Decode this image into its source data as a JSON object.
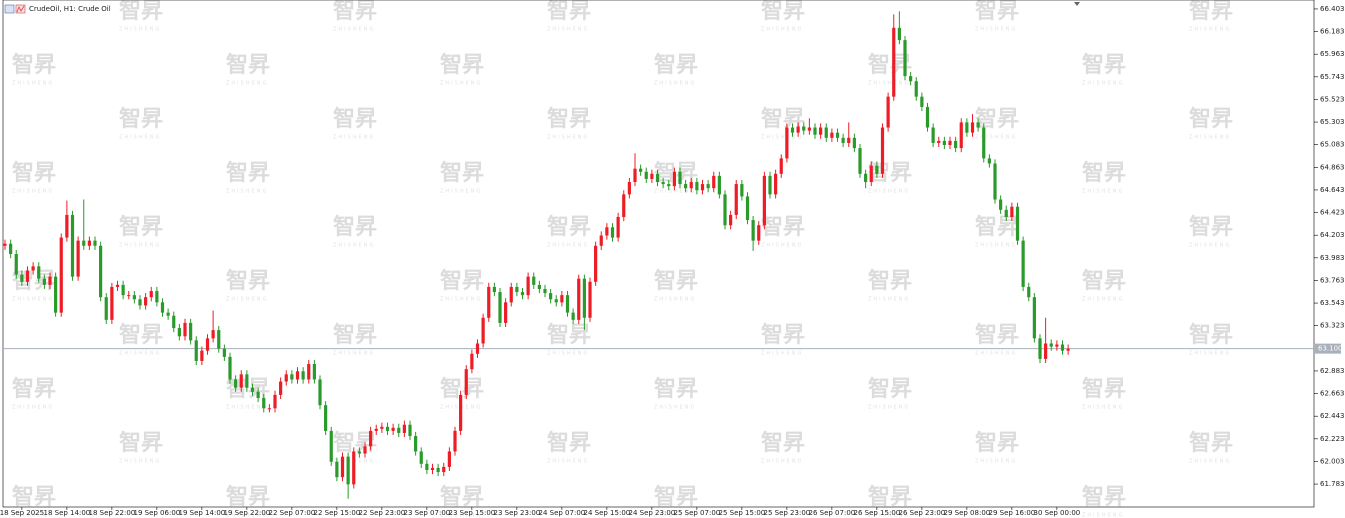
{
  "chart_data": {
    "type": "candlestick",
    "title": "CrudeOil, H1:  Crude Oil",
    "watermark": "智昇",
    "watermark_sub": "ZHISHENG",
    "up_color": "#ee1c25",
    "down_color": "#2a9a2a",
    "last_price": {
      "value": 63.1,
      "label": "63.100"
    },
    "last_price_color": "#a8b0bc",
    "ylim": [
      61.56,
      66.49
    ],
    "yticks": [
      66.403,
      66.183,
      65.963,
      65.743,
      65.523,
      65.303,
      65.083,
      64.863,
      64.643,
      64.423,
      64.203,
      63.983,
      63.763,
      63.543,
      63.323,
      62.883,
      62.663,
      62.443,
      62.223,
      62.003,
      61.783
    ],
    "categories": [
      null,
      null,
      null,
      "18 Sep 2025",
      null,
      null,
      null,
      null,
      null,
      null,
      null,
      "18 Sep 14:00",
      null,
      null,
      null,
      null,
      null,
      null,
      null,
      "18 Sep 22:00",
      null,
      null,
      null,
      null,
      null,
      null,
      null,
      "19 Sep 06:00",
      null,
      null,
      null,
      null,
      null,
      null,
      null,
      "19 Sep 14:00",
      null,
      null,
      null,
      null,
      null,
      null,
      null,
      "19 Sep 22:00",
      null,
      null,
      null,
      null,
      null,
      null,
      null,
      "22 Sep 07:00",
      null,
      null,
      null,
      null,
      null,
      null,
      null,
      "22 Sep 15:00",
      null,
      null,
      null,
      null,
      null,
      null,
      null,
      "22 Sep 23:00",
      null,
      null,
      null,
      null,
      null,
      null,
      null,
      "23 Sep 07:00",
      null,
      null,
      null,
      null,
      null,
      null,
      null,
      "23 Sep 15:00",
      null,
      null,
      null,
      null,
      null,
      null,
      null,
      "23 Sep 23:00",
      null,
      null,
      null,
      null,
      null,
      null,
      null,
      "24 Sep 07:00",
      null,
      null,
      null,
      null,
      null,
      null,
      null,
      "24 Sep 15:00",
      null,
      null,
      null,
      null,
      null,
      null,
      null,
      "24 Sep 23:00",
      null,
      null,
      null,
      null,
      null,
      null,
      null,
      "25 Sep 07:00",
      null,
      null,
      null,
      null,
      null,
      null,
      null,
      "25 Sep 15:00",
      null,
      null,
      null,
      null,
      null,
      null,
      null,
      "25 Sep 23:00",
      null,
      null,
      null,
      null,
      null,
      null,
      null,
      "26 Sep 07:00",
      null,
      null,
      null,
      null,
      null,
      null,
      null,
      "26 Sep 15:00",
      null,
      null,
      null,
      null,
      null,
      null,
      null,
      "26 Sep 23:00",
      null,
      null,
      null,
      null,
      null,
      null,
      null,
      "29 Sep 08:00",
      null,
      null,
      null,
      null,
      null,
      null,
      null,
      "29 Sep 16:00",
      null,
      null,
      null,
      null,
      null,
      null,
      null,
      "30 Sep 00:00",
      null,
      null
    ],
    "open": [
      64.1,
      64.12,
      64.02,
      63.82,
      63.75,
      63.86,
      63.9,
      63.78,
      63.72,
      63.8,
      63.45,
      64.18,
      64.4,
      63.8,
      64.15,
      64.1,
      64.15,
      64.1,
      63.6,
      63.38,
      63.7,
      63.72,
      63.62,
      63.62,
      63.58,
      63.52,
      63.6,
      63.66,
      63.55,
      63.45,
      63.42,
      63.3,
      63.22,
      63.35,
      63.18,
      62.98,
      63.08,
      63.2,
      63.28,
      63.1,
      63.02,
      62.8,
      62.72,
      62.85,
      62.72,
      62.68,
      62.62,
      62.52,
      62.52,
      62.65,
      62.78,
      62.85,
      62.8,
      62.88,
      62.8,
      62.95,
      62.8,
      62.55,
      62.3,
      62.0,
      61.85,
      62.05,
      61.78,
      62.1,
      62.08,
      62.15,
      62.3,
      62.32,
      62.34,
      62.3,
      62.33,
      62.28,
      62.36,
      62.25,
      62.1,
      61.98,
      61.92,
      61.94,
      61.9,
      61.95,
      62.1,
      62.3,
      62.65,
      62.9,
      63.05,
      63.15,
      63.4,
      63.7,
      63.65,
      63.35,
      63.55,
      63.7,
      63.65,
      63.62,
      63.8,
      63.72,
      63.68,
      63.64,
      63.58,
      63.55,
      63.62,
      63.45,
      63.38,
      63.78,
      63.4,
      63.75,
      64.1,
      64.2,
      64.28,
      64.18,
      64.38,
      64.6,
      64.72,
      64.85,
      64.82,
      64.75,
      64.8,
      64.72,
      64.7,
      64.68,
      64.82,
      64.7,
      64.66,
      64.72,
      64.64,
      64.7,
      64.66,
      64.78,
      64.6,
      64.3,
      64.4,
      64.7,
      64.58,
      64.35,
      64.15,
      64.3,
      64.78,
      64.6,
      64.8,
      64.95,
      65.25,
      65.2,
      65.26,
      65.22,
      65.25,
      65.18,
      65.25,
      65.15,
      65.2,
      65.15,
      65.1,
      65.15,
      65.05,
      64.8,
      64.72,
      64.88,
      64.8,
      65.25,
      65.55,
      66.22,
      66.1,
      65.75,
      65.7,
      65.55,
      65.45,
      65.25,
      65.1,
      65.12,
      65.08,
      65.12,
      65.05,
      65.3,
      65.2,
      65.3,
      65.25,
      64.95,
      64.9,
      64.55,
      64.45,
      64.38,
      64.48,
      64.15,
      63.7,
      63.6,
      63.2,
      63.0,
      63.15,
      63.12,
      63.14,
      63.08
    ],
    "high": [
      64.16,
      64.16,
      64.06,
      63.86,
      63.9,
      63.94,
      63.94,
      63.82,
      63.84,
      63.84,
      64.22,
      64.54,
      64.44,
      64.19,
      64.55,
      64.19,
      64.19,
      64.14,
      63.64,
      63.74,
      63.76,
      63.76,
      63.66,
      63.66,
      63.62,
      63.64,
      63.7,
      63.7,
      63.59,
      63.49,
      63.46,
      63.34,
      63.39,
      63.39,
      63.22,
      63.12,
      63.24,
      63.47,
      63.32,
      63.14,
      63.06,
      62.84,
      62.89,
      62.89,
      62.76,
      62.72,
      62.66,
      62.56,
      62.69,
      62.82,
      62.89,
      62.89,
      62.92,
      62.92,
      62.99,
      62.99,
      62.84,
      62.59,
      62.34,
      62.04,
      62.09,
      62.09,
      62.14,
      62.14,
      62.19,
      62.34,
      62.36,
      62.38,
      62.38,
      62.37,
      62.37,
      62.4,
      62.4,
      62.29,
      62.14,
      62.02,
      61.98,
      61.98,
      61.99,
      62.14,
      62.34,
      62.69,
      62.94,
      63.09,
      63.19,
      63.44,
      63.74,
      63.74,
      63.69,
      63.59,
      63.74,
      63.74,
      63.69,
      63.84,
      63.84,
      63.76,
      63.72,
      63.68,
      63.62,
      63.66,
      63.66,
      63.49,
      63.82,
      63.82,
      63.79,
      64.14,
      64.24,
      64.32,
      64.32,
      64.42,
      64.64,
      64.76,
      65.0,
      64.89,
      64.86,
      64.84,
      64.84,
      64.76,
      64.74,
      64.86,
      64.86,
      64.74,
      64.76,
      64.76,
      64.74,
      64.74,
      64.82,
      64.82,
      64.64,
      64.44,
      64.74,
      64.74,
      64.62,
      64.39,
      64.34,
      64.82,
      64.82,
      64.84,
      64.99,
      65.29,
      65.29,
      65.3,
      65.3,
      65.34,
      65.29,
      65.29,
      65.29,
      65.24,
      65.24,
      65.19,
      65.3,
      65.19,
      65.09,
      64.84,
      64.92,
      64.92,
      65.29,
      65.59,
      66.35,
      66.38,
      66.14,
      65.79,
      65.74,
      65.59,
      65.49,
      65.29,
      65.16,
      65.16,
      65.16,
      65.16,
      65.34,
      65.34,
      65.38,
      65.34,
      65.29,
      64.99,
      64.94,
      64.59,
      64.49,
      64.52,
      64.52,
      64.19,
      63.74,
      63.64,
      63.24,
      63.4,
      63.19,
      63.18,
      63.18,
      63.14
    ],
    "low": [
      64.06,
      63.98,
      63.78,
      63.71,
      63.71,
      63.82,
      63.74,
      63.68,
      63.68,
      63.41,
      63.41,
      64.14,
      63.76,
      63.76,
      64.06,
      64.06,
      64.06,
      63.56,
      63.34,
      63.34,
      63.66,
      63.58,
      63.58,
      63.54,
      63.48,
      63.48,
      63.56,
      63.51,
      63.41,
      63.38,
      63.26,
      63.18,
      63.18,
      63.14,
      62.94,
      62.94,
      63.04,
      63.16,
      63.06,
      62.98,
      62.76,
      62.68,
      62.68,
      62.68,
      62.64,
      62.58,
      62.48,
      62.48,
      62.48,
      62.61,
      62.74,
      62.76,
      62.76,
      62.76,
      62.76,
      62.76,
      62.51,
      62.26,
      61.96,
      61.81,
      61.81,
      61.64,
      61.74,
      62.04,
      62.04,
      62.11,
      62.26,
      62.28,
      62.26,
      62.26,
      62.24,
      62.24,
      62.21,
      62.06,
      61.94,
      61.88,
      61.88,
      61.86,
      61.86,
      61.91,
      62.06,
      62.26,
      62.61,
      62.86,
      63.01,
      63.11,
      63.36,
      63.61,
      63.31,
      63.31,
      63.51,
      63.61,
      63.58,
      63.58,
      63.68,
      63.64,
      63.6,
      63.54,
      63.51,
      63.51,
      63.41,
      63.34,
      63.34,
      63.28,
      63.36,
      63.71,
      64.06,
      64.16,
      64.14,
      64.14,
      64.34,
      64.56,
      64.68,
      64.78,
      64.71,
      64.71,
      64.68,
      64.66,
      64.64,
      64.64,
      64.66,
      64.62,
      64.62,
      64.6,
      64.6,
      64.62,
      64.62,
      64.56,
      64.26,
      64.26,
      64.36,
      64.54,
      64.31,
      64.05,
      64.11,
      64.26,
      64.56,
      64.56,
      64.76,
      64.91,
      65.16,
      65.16,
      65.18,
      65.18,
      65.14,
      65.14,
      65.11,
      65.11,
      65.11,
      65.06,
      65.06,
      65.01,
      64.76,
      64.66,
      64.68,
      64.76,
      64.76,
      65.21,
      65.51,
      66.06,
      65.71,
      65.66,
      65.51,
      65.41,
      65.21,
      65.06,
      65.06,
      65.04,
      65.04,
      65.01,
      65.01,
      65.16,
      65.16,
      65.21,
      64.91,
      64.86,
      64.51,
      64.41,
      64.34,
      64.34,
      64.11,
      63.66,
      63.56,
      63.16,
      62.96,
      62.96,
      63.08,
      63.08,
      63.04,
      63.04
    ],
    "close": [
      64.12,
      64.02,
      63.82,
      63.75,
      63.86,
      63.9,
      63.78,
      63.72,
      63.8,
      63.45,
      64.18,
      64.4,
      63.8,
      64.15,
      64.1,
      64.15,
      64.1,
      63.6,
      63.38,
      63.7,
      63.72,
      63.62,
      63.62,
      63.58,
      63.52,
      63.6,
      63.66,
      63.55,
      63.45,
      63.42,
      63.3,
      63.22,
      63.35,
      63.18,
      62.98,
      63.08,
      63.2,
      63.28,
      63.1,
      63.02,
      62.8,
      62.72,
      62.85,
      62.72,
      62.68,
      62.62,
      62.52,
      62.52,
      62.65,
      62.78,
      62.85,
      62.8,
      62.88,
      62.8,
      62.95,
      62.8,
      62.55,
      62.3,
      62.0,
      61.85,
      62.05,
      61.78,
      62.1,
      62.08,
      62.15,
      62.3,
      62.32,
      62.34,
      62.3,
      62.33,
      62.28,
      62.36,
      62.25,
      62.1,
      61.98,
      61.92,
      61.94,
      61.9,
      61.95,
      62.1,
      62.3,
      62.65,
      62.9,
      63.05,
      63.15,
      63.4,
      63.7,
      63.65,
      63.35,
      63.55,
      63.7,
      63.65,
      63.62,
      63.8,
      63.72,
      63.68,
      63.64,
      63.58,
      63.55,
      63.62,
      63.45,
      63.38,
      63.78,
      63.4,
      63.75,
      64.1,
      64.2,
      64.28,
      64.18,
      64.38,
      64.6,
      64.72,
      64.85,
      64.82,
      64.75,
      64.8,
      64.72,
      64.7,
      64.68,
      64.82,
      64.7,
      64.66,
      64.72,
      64.64,
      64.7,
      64.66,
      64.78,
      64.6,
      64.3,
      64.4,
      64.7,
      64.58,
      64.35,
      64.15,
      64.3,
      64.78,
      64.6,
      64.8,
      64.95,
      65.25,
      65.2,
      65.26,
      65.22,
      65.25,
      65.18,
      65.25,
      65.15,
      65.2,
      65.15,
      65.1,
      65.15,
      65.05,
      64.8,
      64.72,
      64.88,
      64.8,
      65.25,
      65.55,
      66.22,
      66.1,
      65.75,
      65.7,
      65.55,
      65.45,
      65.25,
      65.1,
      65.12,
      65.08,
      65.12,
      65.05,
      65.3,
      65.2,
      65.3,
      65.25,
      64.95,
      64.9,
      64.55,
      64.45,
      64.38,
      64.48,
      64.15,
      63.7,
      63.6,
      63.2,
      63.0,
      63.15,
      63.12,
      63.14,
      63.08,
      63.1
    ]
  }
}
